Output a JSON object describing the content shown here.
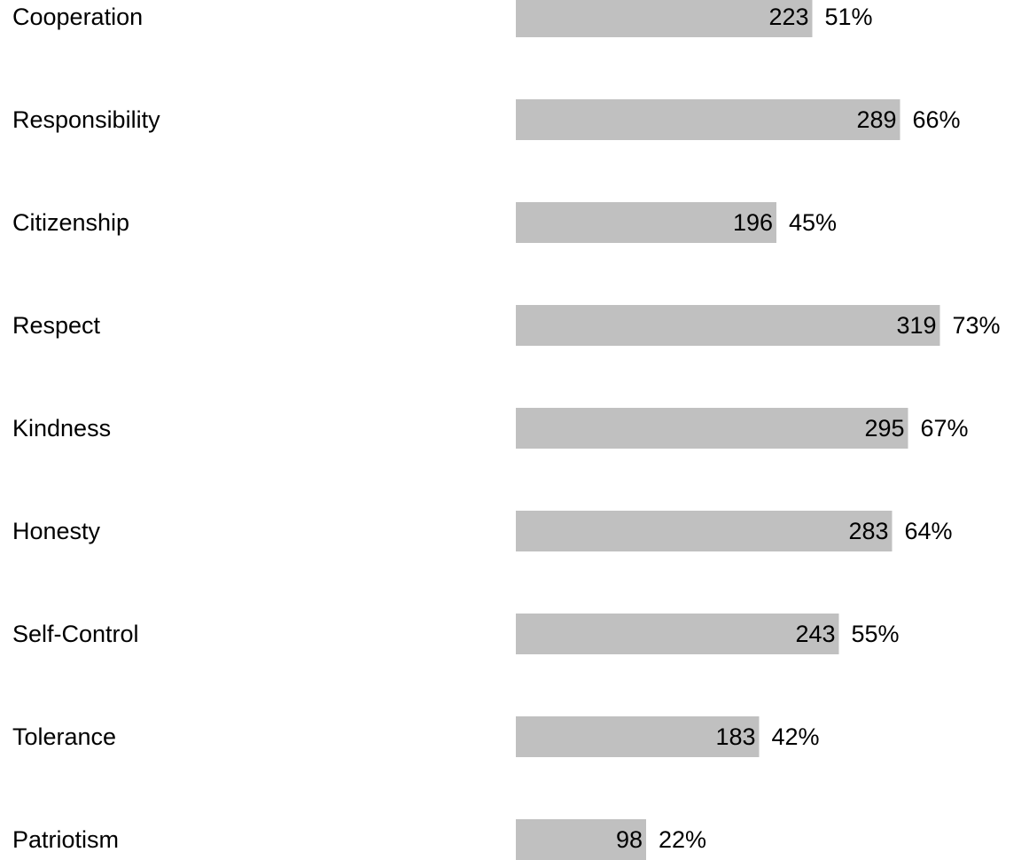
{
  "chart_data": {
    "type": "bar",
    "orientation": "horizontal",
    "categories": [
      "Cooperation",
      "Responsibility",
      "Citizenship",
      "Respect",
      "Kindness",
      "Honesty",
      "Self-Control",
      "Tolerance",
      "Patriotism"
    ],
    "values": [
      223,
      289,
      196,
      319,
      295,
      283,
      243,
      183,
      98
    ],
    "percent_labels": [
      "51%",
      "66%",
      "45%",
      "73%",
      "67%",
      "64%",
      "55%",
      "42%",
      "22%"
    ],
    "bar_color": "#c0c0c0",
    "text_color": "#000000",
    "grid": false,
    "legend": "none",
    "title": "",
    "xlabel": "",
    "ylabel": ""
  }
}
